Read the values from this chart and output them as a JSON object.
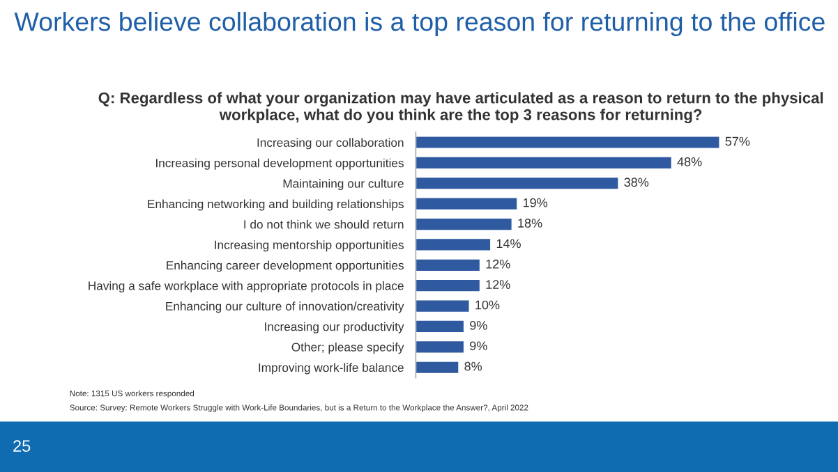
{
  "chart_data": {
    "type": "bar",
    "orientation": "horizontal",
    "title": "Workers believe collaboration is a top reason for returning to the office",
    "subtitle": "Q: Regardless of what your organization may have articulated as a reason to return to the physical workplace, what do you think are the top 3 reasons for returning?",
    "categories": [
      "Increasing our collaboration",
      "Increasing personal development opportunities",
      "Maintaining our culture",
      "Enhancing networking and building relationships",
      "I do not think we should return",
      "Increasing mentorship opportunities",
      "Enhancing career development opportunities",
      "Having a safe workplace with appropriate protocols in place",
      "Enhancing our culture of innovation/creativity",
      "Increasing our productivity",
      "Other; please specify",
      "Improving work-life balance"
    ],
    "values": [
      57,
      48,
      38,
      19,
      18,
      14,
      12,
      12,
      10,
      9,
      9,
      8
    ],
    "value_labels": [
      "57%",
      "48%",
      "38%",
      "19%",
      "18%",
      "14%",
      "12%",
      "12%",
      "10%",
      "9%",
      "9%",
      "8%"
    ],
    "color": "#2f5aa0",
    "annotations": [
      "Note: 1315 US workers responded",
      "Source: Survey: Remote Workers Struggle with Work-Life Boundaries, but is a Return to the Workplace the Answer?, April 2022",
      "25"
    ]
  }
}
